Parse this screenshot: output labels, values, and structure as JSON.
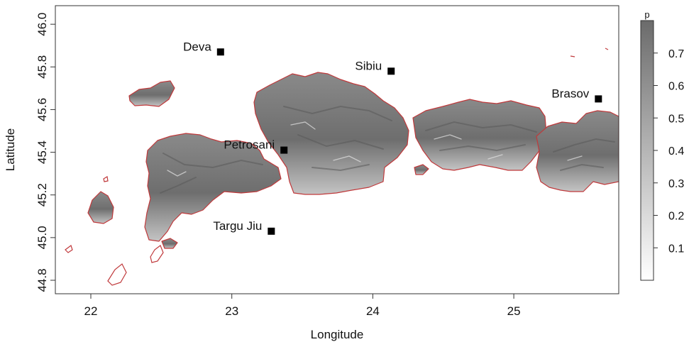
{
  "chart_data": {
    "type": "heatmap",
    "xlabel": "Longitude",
    "ylabel": "Latitude",
    "xlim": [
      21.75,
      25.75
    ],
    "ylim": [
      44.75,
      46.1
    ],
    "x_ticks": [
      "22",
      "23",
      "24",
      "25"
    ],
    "y_ticks": [
      "44.8",
      "45.0",
      "45.2",
      "45.4",
      "45.6",
      "45.8",
      "46.0"
    ],
    "legend": {
      "title": "p",
      "ticks": [
        "0.1",
        "0.2",
        "0.3",
        "0.4",
        "0.5",
        "0.6",
        "0.7"
      ],
      "range": [
        0.0,
        0.8
      ],
      "placement": "right",
      "colors": [
        "#ffffff",
        "#6b6b6b"
      ]
    },
    "contour_color": "#c0393b",
    "point_color": "#000000",
    "cities": [
      {
        "name": "Deva",
        "lon": 22.92,
        "lat": 45.87
      },
      {
        "name": "Sibiu",
        "lon": 24.13,
        "lat": 45.78
      },
      {
        "name": "Brasov",
        "lon": 25.6,
        "lat": 45.65
      },
      {
        "name": "Petrosani",
        "lon": 23.37,
        "lat": 45.41
      },
      {
        "name": "Targu Jiu",
        "lon": 23.28,
        "lat": 45.03
      }
    ]
  }
}
